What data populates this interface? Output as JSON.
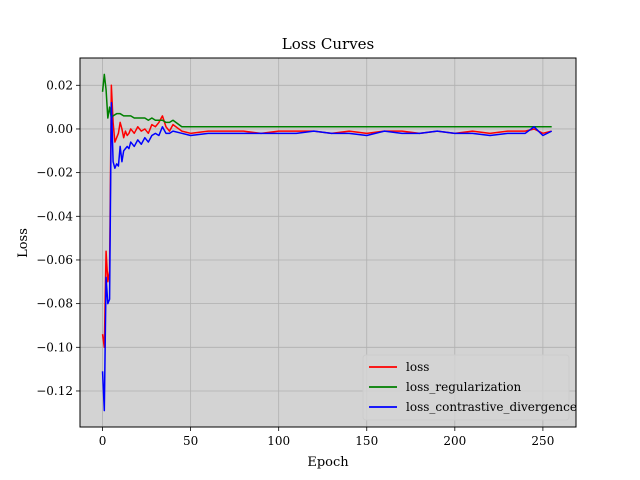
{
  "chart_data": {
    "type": "line",
    "title": "Loss Curves",
    "xlabel": "Epoch",
    "ylabel": "Loss",
    "xlim": [
      -12.8,
      268.8
    ],
    "ylim": [
      -0.1365,
      0.0325
    ],
    "xticks": [
      0,
      50,
      100,
      150,
      200,
      250
    ],
    "xtick_labels": [
      "0",
      "50",
      "100",
      "150",
      "200",
      "250"
    ],
    "yticks": [
      0.02,
      0.0,
      -0.02,
      -0.04,
      -0.06,
      -0.08,
      -0.1,
      -0.12
    ],
    "ytick_labels": [
      "0.02",
      "0.00",
      "−0.02",
      "−0.04",
      "−0.06",
      "−0.08",
      "−0.10",
      "−0.12"
    ],
    "grid": true,
    "legend_position": "lower-right",
    "background": "#d3d3d3",
    "series": [
      {
        "name": "loss",
        "color": "#ff0000",
        "x": [
          0,
          1,
          2,
          3,
          4,
          5,
          6,
          7,
          8,
          9,
          10,
          11,
          12,
          13,
          14,
          15,
          16,
          18,
          20,
          22,
          24,
          26,
          28,
          30,
          32,
          34,
          36,
          38,
          40,
          45,
          50,
          60,
          70,
          80,
          90,
          100,
          110,
          120,
          130,
          140,
          150,
          160,
          170,
          180,
          190,
          200,
          210,
          220,
          230,
          240,
          245,
          250,
          255
        ],
        "y": [
          -0.094,
          -0.1,
          -0.056,
          -0.07,
          -0.065,
          0.02,
          0.003,
          -0.006,
          -0.004,
          -0.002,
          0.003,
          0.0,
          -0.004,
          -0.001,
          -0.003,
          -0.002,
          0.0,
          -0.002,
          0.001,
          -0.001,
          0.0,
          -0.002,
          0.002,
          0.001,
          0.003,
          0.006,
          0.001,
          -0.001,
          0.002,
          -0.001,
          -0.002,
          -0.001,
          -0.001,
          -0.001,
          -0.002,
          -0.001,
          -0.001,
          -0.001,
          -0.002,
          -0.001,
          -0.002,
          -0.001,
          -0.001,
          -0.002,
          -0.001,
          -0.002,
          -0.001,
          -0.002,
          -0.001,
          -0.001,
          0.0,
          -0.002,
          -0.001
        ]
      },
      {
        "name": "loss_regularization",
        "color": "#008000",
        "x": [
          0,
          1,
          2,
          3,
          4,
          5,
          6,
          8,
          10,
          12,
          14,
          16,
          18,
          20,
          22,
          24,
          26,
          28,
          30,
          32,
          34,
          36,
          38,
          40,
          45,
          50,
          60,
          70,
          80,
          90,
          100,
          120,
          140,
          160,
          180,
          200,
          220,
          240,
          255
        ],
        "y": [
          0.017,
          0.025,
          0.018,
          0.005,
          0.01,
          0.005,
          0.006,
          0.007,
          0.007,
          0.006,
          0.006,
          0.006,
          0.005,
          0.005,
          0.005,
          0.005,
          0.004,
          0.005,
          0.004,
          0.004,
          0.004,
          0.003,
          0.003,
          0.004,
          0.001,
          0.001,
          0.001,
          0.001,
          0.001,
          0.001,
          0.001,
          0.001,
          0.001,
          0.001,
          0.001,
          0.001,
          0.001,
          0.001,
          0.001
        ]
      },
      {
        "name": "loss_contrastive_divergence",
        "color": "#0000ff",
        "x": [
          0,
          1,
          2,
          3,
          4,
          5,
          6,
          7,
          8,
          9,
          10,
          11,
          12,
          13,
          14,
          15,
          16,
          18,
          20,
          22,
          24,
          26,
          28,
          30,
          32,
          34,
          36,
          38,
          40,
          45,
          50,
          60,
          70,
          80,
          90,
          100,
          110,
          120,
          130,
          140,
          150,
          160,
          170,
          180,
          190,
          200,
          210,
          220,
          230,
          240,
          245,
          250,
          255
        ],
        "y": [
          -0.111,
          -0.129,
          -0.068,
          -0.08,
          -0.078,
          0.012,
          -0.015,
          -0.018,
          -0.016,
          -0.017,
          -0.008,
          -0.015,
          -0.01,
          -0.009,
          -0.008,
          -0.009,
          -0.006,
          -0.008,
          -0.005,
          -0.007,
          -0.004,
          -0.006,
          -0.003,
          -0.002,
          -0.003,
          0.001,
          -0.002,
          -0.002,
          -0.001,
          -0.002,
          -0.003,
          -0.002,
          -0.002,
          -0.002,
          -0.002,
          -0.002,
          -0.002,
          -0.001,
          -0.002,
          -0.002,
          -0.003,
          -0.001,
          -0.002,
          -0.002,
          -0.001,
          -0.002,
          -0.002,
          -0.003,
          -0.002,
          -0.002,
          0.001,
          -0.003,
          -0.001
        ]
      }
    ]
  }
}
